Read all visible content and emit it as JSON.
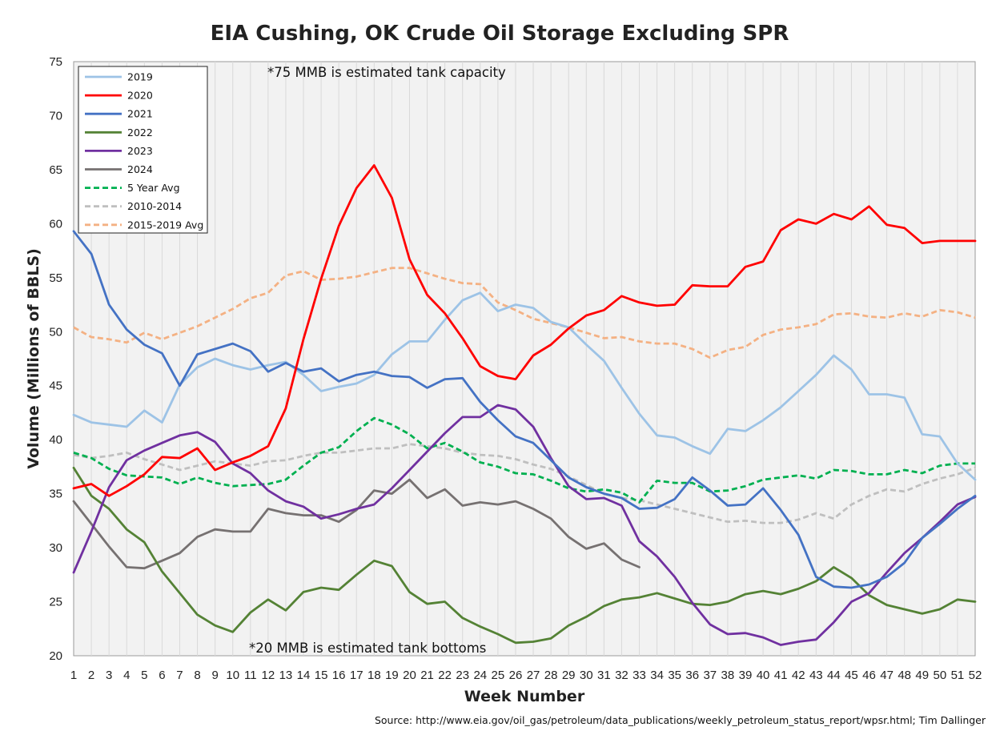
{
  "chart_data": {
    "type": "line",
    "title": "EIA Cushing, OK Crude Oil Storage Excluding SPR",
    "xlabel": "Week Number",
    "ylabel": "Volume (Millions of BBLS)",
    "xlim": [
      1,
      52
    ],
    "ylim": [
      20,
      75
    ],
    "yticks": [
      20,
      25,
      30,
      35,
      40,
      45,
      50,
      55,
      60,
      65,
      70,
      75
    ],
    "x": [
      1,
      2,
      3,
      4,
      5,
      6,
      7,
      8,
      9,
      10,
      11,
      12,
      13,
      14,
      15,
      16,
      17,
      18,
      19,
      20,
      21,
      22,
      23,
      24,
      25,
      26,
      27,
      28,
      29,
      30,
      31,
      32,
      33,
      34,
      35,
      36,
      37,
      38,
      39,
      40,
      41,
      42,
      43,
      44,
      45,
      46,
      47,
      48,
      49,
      50,
      51,
      52
    ],
    "grid": "vertical",
    "legend_position": "top-left",
    "annotations": [
      "*75 MMB is estimated tank capacity",
      "*20 MMB is estimated tank bottoms"
    ],
    "source": "Source: http://www.eia.gov/oil_gas/petroleum/data_publications/weekly_petroleum_status_report/wpsr.html; Tim Dallinger",
    "series": [
      {
        "name": "2019",
        "color": "#9DC3E6",
        "dash": "solid",
        "values": [
          42.3,
          41.6,
          41.4,
          41.2,
          42.7,
          41.6,
          45.1,
          46.7,
          47.5,
          46.9,
          46.5,
          46.9,
          47.2,
          46.0,
          44.5,
          44.9,
          45.2,
          46.0,
          47.9,
          49.1,
          49.1,
          51.1,
          52.9,
          53.6,
          51.9,
          52.5,
          52.2,
          50.9,
          50.4,
          48.8,
          47.3,
          44.8,
          42.4,
          40.4,
          40.2,
          39.4,
          38.7,
          41.0,
          40.8,
          41.8,
          43.0,
          44.5,
          46.0,
          47.8,
          46.5,
          44.2,
          44.2,
          43.9,
          40.5,
          40.3,
          37.8,
          36.3
        ]
      },
      {
        "name": "2020",
        "color": "#FF0000",
        "dash": "solid",
        "values": [
          35.5,
          35.9,
          34.8,
          35.7,
          36.8,
          38.4,
          38.3,
          39.2,
          37.2,
          37.9,
          38.5,
          39.4,
          42.9,
          49.3,
          54.9,
          59.8,
          63.3,
          65.4,
          62.4,
          56.7,
          53.4,
          51.7,
          49.4,
          46.8,
          45.9,
          45.6,
          47.8,
          48.8,
          50.3,
          51.5,
          52.0,
          53.3,
          52.7,
          52.4,
          52.5,
          54.3,
          54.2,
          54.2,
          56.0,
          56.5,
          59.4,
          60.4,
          60.0,
          60.9,
          60.4,
          61.6,
          59.9,
          59.6,
          58.2,
          58.4,
          58.4,
          58.4
        ]
      },
      {
        "name": "2021",
        "color": "#4472C4",
        "dash": "solid",
        "values": [
          59.3,
          57.2,
          52.5,
          50.2,
          48.8,
          48.0,
          45.0,
          47.9,
          48.4,
          48.9,
          48.2,
          46.3,
          47.1,
          46.3,
          46.6,
          45.4,
          46.0,
          46.3,
          45.9,
          45.8,
          44.8,
          45.6,
          45.7,
          43.5,
          41.8,
          40.3,
          39.7,
          38.1,
          36.5,
          35.6,
          35.0,
          34.6,
          33.6,
          33.7,
          34.5,
          36.5,
          35.3,
          33.9,
          34.0,
          35.5,
          33.5,
          31.2,
          27.3,
          26.4,
          26.3,
          26.6,
          27.3,
          28.6,
          30.9,
          32.2,
          33.6,
          34.8
        ]
      },
      {
        "name": "2022",
        "color": "#548235",
        "dash": "solid",
        "values": [
          37.4,
          34.8,
          33.6,
          31.7,
          30.5,
          27.8,
          25.8,
          23.8,
          22.8,
          22.2,
          24.0,
          25.2,
          24.2,
          25.9,
          26.3,
          26.1,
          27.5,
          28.8,
          28.3,
          25.9,
          24.8,
          25.0,
          23.5,
          22.7,
          22.0,
          21.2,
          21.3,
          21.6,
          22.8,
          23.6,
          24.6,
          25.2,
          25.4,
          25.8,
          25.3,
          24.8,
          24.7,
          25.0,
          25.7,
          26.0,
          25.7,
          26.2,
          26.9,
          28.2,
          27.2,
          25.6,
          24.7,
          24.3,
          23.9,
          24.3,
          25.2,
          25.0
        ]
      },
      {
        "name": "2023",
        "color": "#7030A0",
        "dash": "solid",
        "values": [
          27.7,
          31.5,
          35.6,
          38.1,
          39.0,
          39.7,
          40.4,
          40.7,
          39.8,
          37.8,
          36.9,
          35.3,
          34.3,
          33.8,
          32.7,
          33.1,
          33.6,
          34.0,
          35.5,
          37.2,
          38.9,
          40.6,
          42.1,
          42.1,
          43.2,
          42.8,
          41.2,
          38.3,
          35.7,
          34.5,
          34.6,
          33.9,
          30.6,
          29.2,
          27.3,
          24.9,
          22.9,
          22.0,
          22.1,
          21.7,
          21.0,
          21.3,
          21.5,
          23.1,
          25.0,
          25.8,
          27.7,
          29.5,
          30.9,
          32.4,
          34.0,
          34.7
        ]
      },
      {
        "name": "2024",
        "color": "#767171",
        "dash": "solid",
        "values": [
          34.3,
          32.2,
          30.1,
          28.2,
          28.1,
          28.8,
          29.5,
          31.0,
          31.7,
          31.5,
          31.5,
          33.6,
          33.2,
          33.0,
          33.0,
          32.4,
          33.5,
          35.3,
          35.0,
          36.3,
          34.6,
          35.4,
          33.9,
          34.2,
          34.0,
          34.3,
          33.6,
          32.7,
          31.0,
          29.9,
          30.4,
          28.9,
          28.2,
          null,
          null,
          null,
          null,
          null,
          null,
          null,
          null,
          null,
          null,
          null,
          null,
          null,
          null,
          null,
          null,
          null,
          null,
          null
        ]
      },
      {
        "name": "5 Year Avg",
        "color": "#00B050",
        "dash": "dashed",
        "values": [
          38.8,
          38.3,
          37.3,
          36.7,
          36.6,
          36.5,
          35.9,
          36.5,
          36.0,
          35.7,
          35.8,
          35.9,
          36.3,
          37.6,
          38.8,
          39.3,
          40.8,
          42.0,
          41.4,
          40.5,
          39.2,
          39.7,
          38.9,
          37.9,
          37.5,
          36.9,
          36.8,
          36.2,
          35.5,
          35.2,
          35.4,
          35.1,
          34.2,
          36.2,
          36.0,
          36.0,
          35.2,
          35.3,
          35.7,
          36.3,
          36.5,
          36.7,
          36.4,
          37.2,
          37.1,
          36.8,
          36.8,
          37.2,
          36.9,
          37.6,
          37.8,
          37.8
        ]
      },
      {
        "name": "2010-2014",
        "color": "#BFBFBF",
        "dash": "dashed",
        "values": [
          38.6,
          38.3,
          38.5,
          38.8,
          38.2,
          37.7,
          37.2,
          37.6,
          38.0,
          37.8,
          37.6,
          38.0,
          38.1,
          38.5,
          38.8,
          38.8,
          39.0,
          39.2,
          39.2,
          39.6,
          39.4,
          39.2,
          38.8,
          38.6,
          38.5,
          38.2,
          37.7,
          37.3,
          36.6,
          35.8,
          35.0,
          34.6,
          34.4,
          34.0,
          33.6,
          33.2,
          32.8,
          32.4,
          32.5,
          32.3,
          32.3,
          32.6,
          33.2,
          32.7,
          34.0,
          34.8,
          35.4,
          35.2,
          35.9,
          36.4,
          36.8,
          37.4
        ]
      },
      {
        "name": "2015-2019 Avg",
        "color": "#F4B183",
        "dash": "dashed",
        "values": [
          50.4,
          49.5,
          49.3,
          49.0,
          49.9,
          49.3,
          49.9,
          50.5,
          51.3,
          52.1,
          53.1,
          53.6,
          55.2,
          55.6,
          54.8,
          54.9,
          55.1,
          55.5,
          55.9,
          55.9,
          55.4,
          54.9,
          54.5,
          54.4,
          52.7,
          52.0,
          51.2,
          50.8,
          50.4,
          49.9,
          49.4,
          49.5,
          49.1,
          48.9,
          48.9,
          48.4,
          47.6,
          48.3,
          48.6,
          49.7,
          50.2,
          50.4,
          50.7,
          51.6,
          51.7,
          51.4,
          51.3,
          51.7,
          51.4,
          52.0,
          51.8,
          51.3
        ]
      }
    ]
  }
}
